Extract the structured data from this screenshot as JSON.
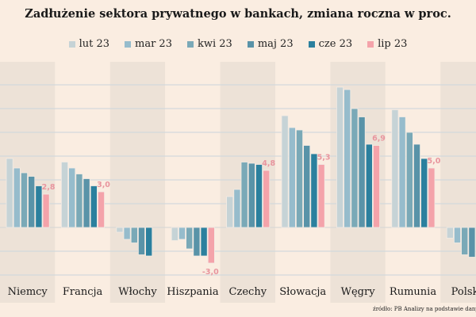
{
  "title": "Zadłużenie sektora prywatnego w bankach, zmiana roczna w proc.",
  "source": "źródło: PB Analizy na podstawie danych z",
  "chart_data": {
    "type": "bar",
    "title": "Zadłużenie sektora prywatnego w bankach, zmiana roczna w proc.",
    "categories": [
      "Niemcy",
      "Francja",
      "Włochy",
      "Hiszpania",
      "Czechy",
      "Słowacja",
      "Węgry",
      "Rumunia",
      "Polska"
    ],
    "series": [
      {
        "name": "lut 23",
        "color": "#c6d3d6",
        "values": [
          5.8,
          5.5,
          -0.4,
          -1.1,
          2.6,
          9.4,
          11.8,
          9.9,
          -0.9
        ]
      },
      {
        "name": "mar 23",
        "color": "#96bccc",
        "values": [
          5.0,
          5.0,
          -1.0,
          -1.0,
          3.2,
          8.4,
          11.6,
          9.3,
          -1.3
        ]
      },
      {
        "name": "kwi 23",
        "color": "#7aa9b7",
        "values": [
          4.6,
          4.5,
          -1.3,
          -1.8,
          5.5,
          8.2,
          10.0,
          8.0,
          -2.3
        ]
      },
      {
        "name": "maj 23",
        "color": "#5993a8",
        "values": [
          4.3,
          4.1,
          -2.3,
          -2.4,
          5.4,
          6.9,
          9.3,
          7.0,
          -2.5
        ]
      },
      {
        "name": "cze 23",
        "color": "#2b809e",
        "values": [
          3.5,
          3.5,
          -2.4,
          -2.4,
          5.3,
          6.2,
          7.0,
          5.8,
          null
        ]
      },
      {
        "name": "lip 23",
        "color": "#f4a3aa",
        "values": [
          2.8,
          3.0,
          null,
          -3.0,
          4.8,
          5.3,
          6.9,
          5.0,
          null
        ]
      }
    ],
    "data_labels": [
      "2,8",
      "3,0",
      "",
      "-3,0",
      "4,8",
      "5,3",
      "6,9",
      "5,0",
      ""
    ],
    "label_color": "#e8959e",
    "ylim": [
      -4,
      12
    ],
    "grid": true,
    "legend": "top"
  }
}
